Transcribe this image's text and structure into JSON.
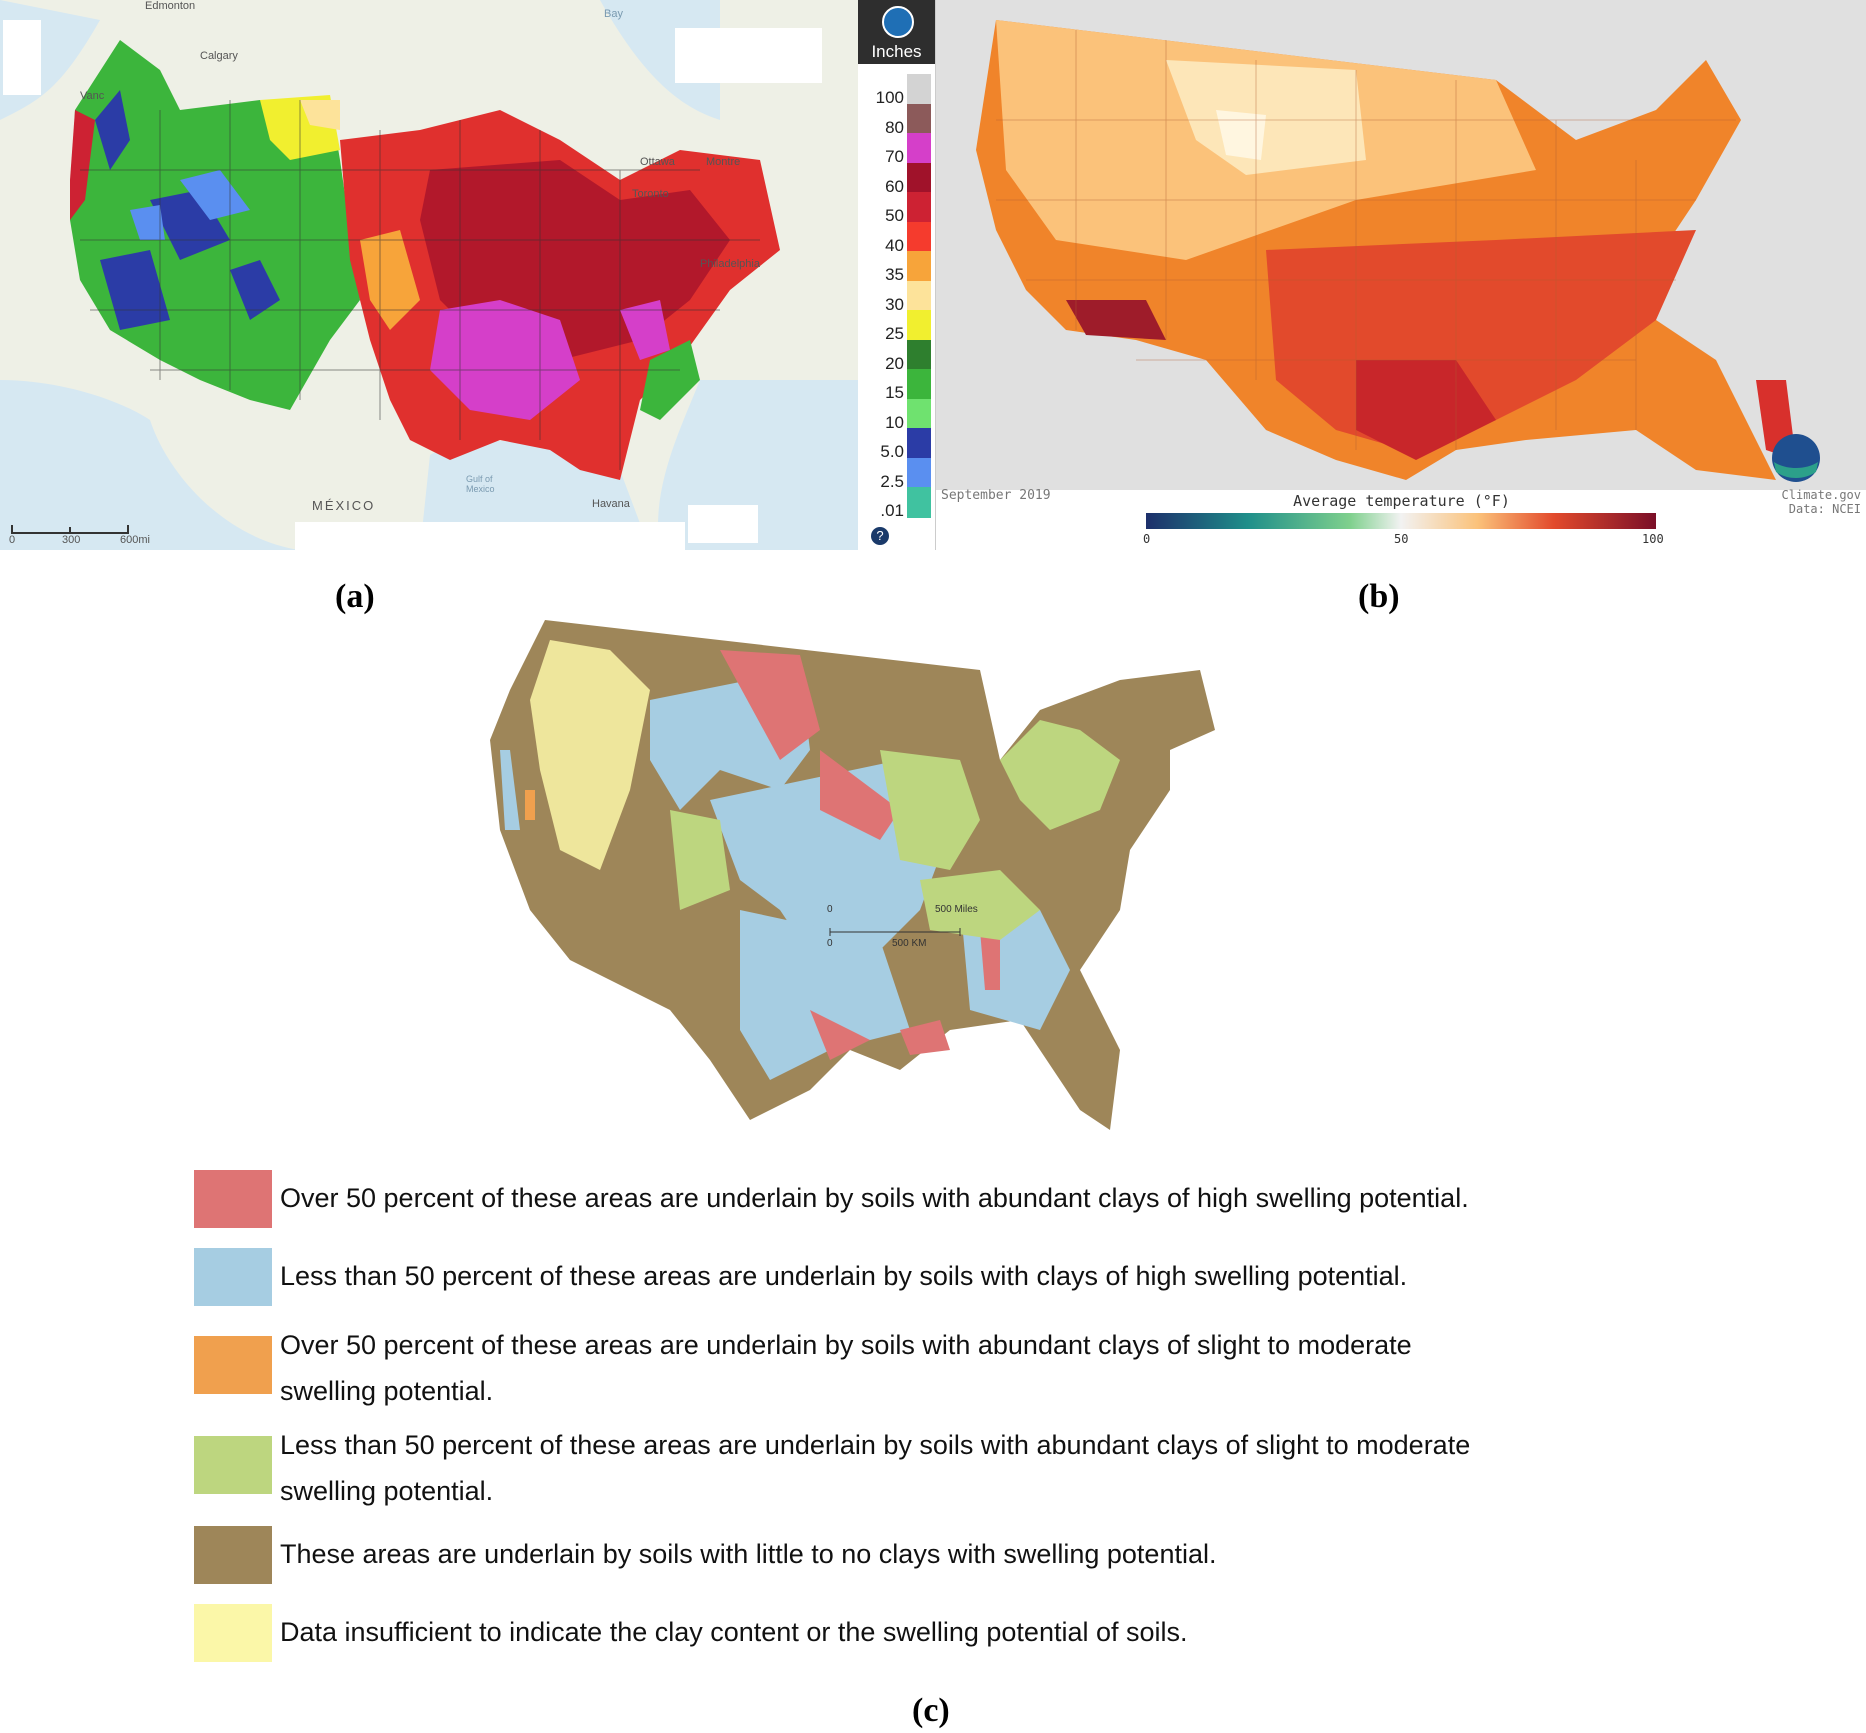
{
  "panel_a": {
    "label": "(a)",
    "unit_title": "Inches",
    "legend_ticks": [
      "100",
      "80",
      "70",
      "60",
      "50",
      "40",
      "35",
      "30",
      "25",
      "20",
      "15",
      "10",
      "5.0",
      "2.5",
      ".01"
    ],
    "legend_colors": [
      "#d3d3d3",
      "#8c5a5a",
      "#d53fc9",
      "#a0122a",
      "#cd2233",
      "#f53b2d",
      "#f7a43a",
      "#fde39a",
      "#f1ef2f",
      "#2e7f2e",
      "#3cb53c",
      "#6fe26f",
      "#2b3ca6",
      "#5a8ff0",
      "#40c2a0"
    ],
    "place_labels": [
      "Edmonton",
      "Calgary",
      "Vanc",
      "Ottawa",
      "Montre",
      "Toronto",
      "Philadelphia",
      "MÉXICO",
      "Gulf of Mexico",
      "Havana",
      "Bay"
    ],
    "scale_ticks": [
      "0",
      "300",
      "600mi"
    ],
    "help_icon": "question-icon",
    "logo_icon": "noaa-logo-icon"
  },
  "panel_b": {
    "label": "(b)",
    "date": "September 2019",
    "colorbar_title": "Average temperature (°F)",
    "colorbar_ticks": [
      "0",
      "50",
      "100"
    ],
    "credit_line1": "Climate.gov",
    "credit_line2": "Data: NCEI",
    "logo_icon": "noaa-logo-icon"
  },
  "panel_c": {
    "label": "(c)",
    "scale_miles": [
      "0",
      "500 Miles"
    ],
    "scale_km": [
      "0",
      "500 KM"
    ],
    "legend": [
      {
        "color": "#de7474",
        "text": "Over 50 percent of these areas are underlain by soils with abundant clays of high swelling potential."
      },
      {
        "color": "#a6cde2",
        "text": "Less than 50 percent of these areas are underlain by soils with clays of high swelling potential."
      },
      {
        "color": "#f0a04e",
        "text": "Over 50 percent of these areas are underlain by soils with abundant clays of slight to moderate",
        "text2": "swelling potential."
      },
      {
        "color": "#bdd67f",
        "text": "Less than 50 percent of these areas are underlain by soils with abundant clays of slight to moderate",
        "text2": "swelling potential."
      },
      {
        "color": "#9e8659",
        "text": "These areas are underlain by soils with little to no clays with swelling potential."
      },
      {
        "color": "#fbf7a8",
        "text": "Data insufficient to indicate the clay content or the swelling potential of soils."
      }
    ]
  }
}
